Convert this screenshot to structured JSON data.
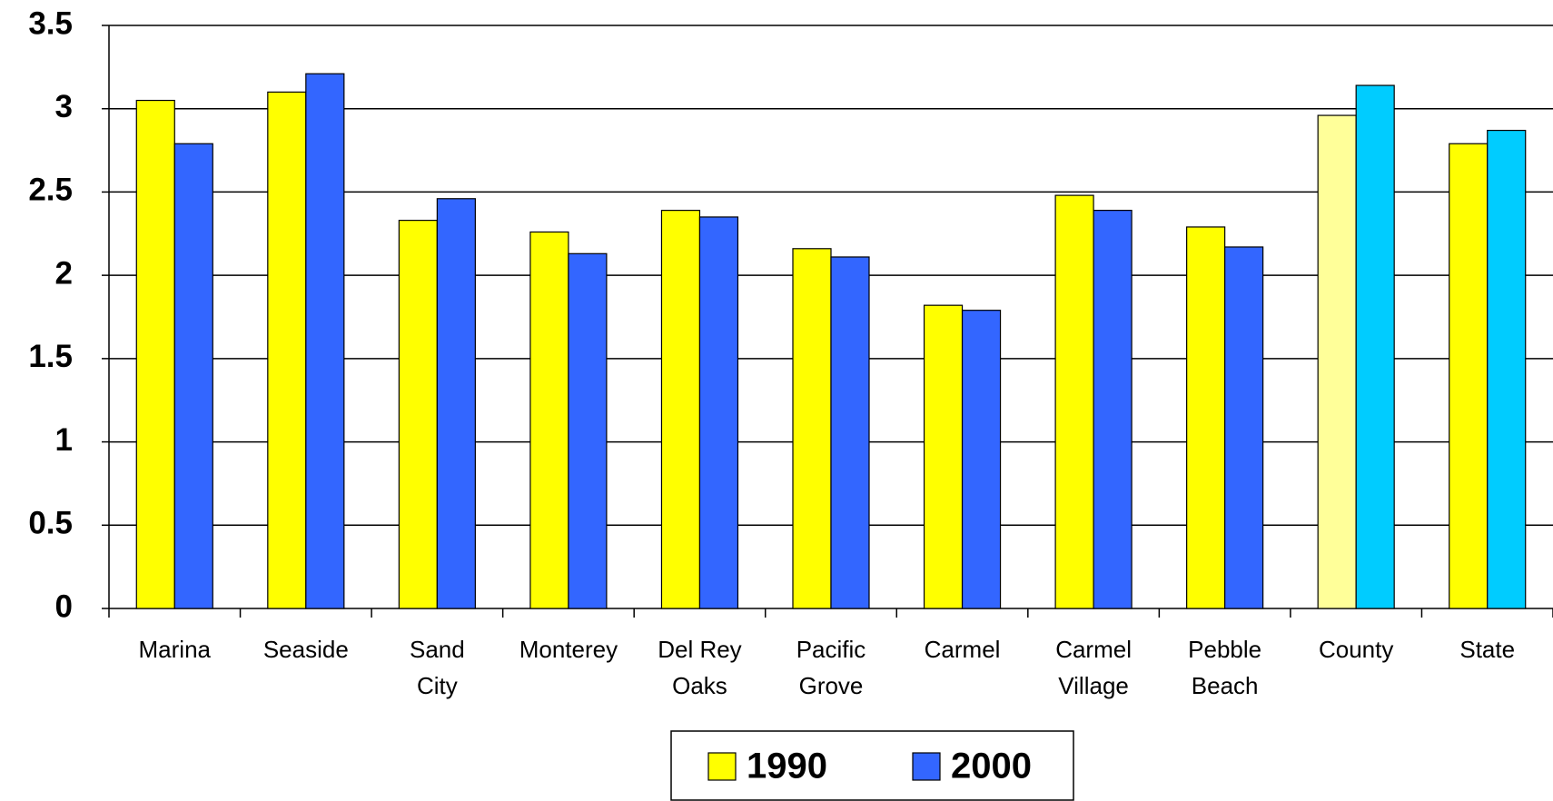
{
  "chart_data": {
    "type": "bar",
    "categories": [
      [
        "Marina"
      ],
      [
        "Seaside"
      ],
      [
        "Sand",
        "City"
      ],
      [
        "Monterey"
      ],
      [
        "Del Rey",
        "Oaks"
      ],
      [
        "Pacific",
        "Grove"
      ],
      [
        "Carmel"
      ],
      [
        "Carmel",
        "Village"
      ],
      [
        "Pebble",
        "Beach"
      ],
      [
        "County"
      ],
      [
        "State"
      ]
    ],
    "series": [
      {
        "name": "1990",
        "color": "#ffff00",
        "colors": [
          "#ffff00",
          "#ffff00",
          "#ffff00",
          "#ffff00",
          "#ffff00",
          "#ffff00",
          "#ffff00",
          "#ffff00",
          "#ffff00",
          "#ffff99",
          "#ffff00"
        ],
        "values": [
          3.05,
          3.1,
          2.33,
          2.26,
          2.39,
          2.16,
          1.82,
          2.48,
          2.29,
          2.96,
          2.79
        ]
      },
      {
        "name": "2000",
        "color": "#3366ff",
        "colors": [
          "#3366ff",
          "#3366ff",
          "#3366ff",
          "#3366ff",
          "#3366ff",
          "#3366ff",
          "#3366ff",
          "#3366ff",
          "#3366ff",
          "#00ccff",
          "#00ccff"
        ],
        "values": [
          2.79,
          3.21,
          2.46,
          2.13,
          2.35,
          2.11,
          1.79,
          2.39,
          2.17,
          3.14,
          2.87
        ]
      }
    ],
    "ylim": [
      0,
      3.5
    ],
    "yticks": [
      0,
      0.5,
      1,
      1.5,
      2,
      2.5,
      3,
      3.5
    ],
    "grid": true,
    "legend": "bottom"
  }
}
